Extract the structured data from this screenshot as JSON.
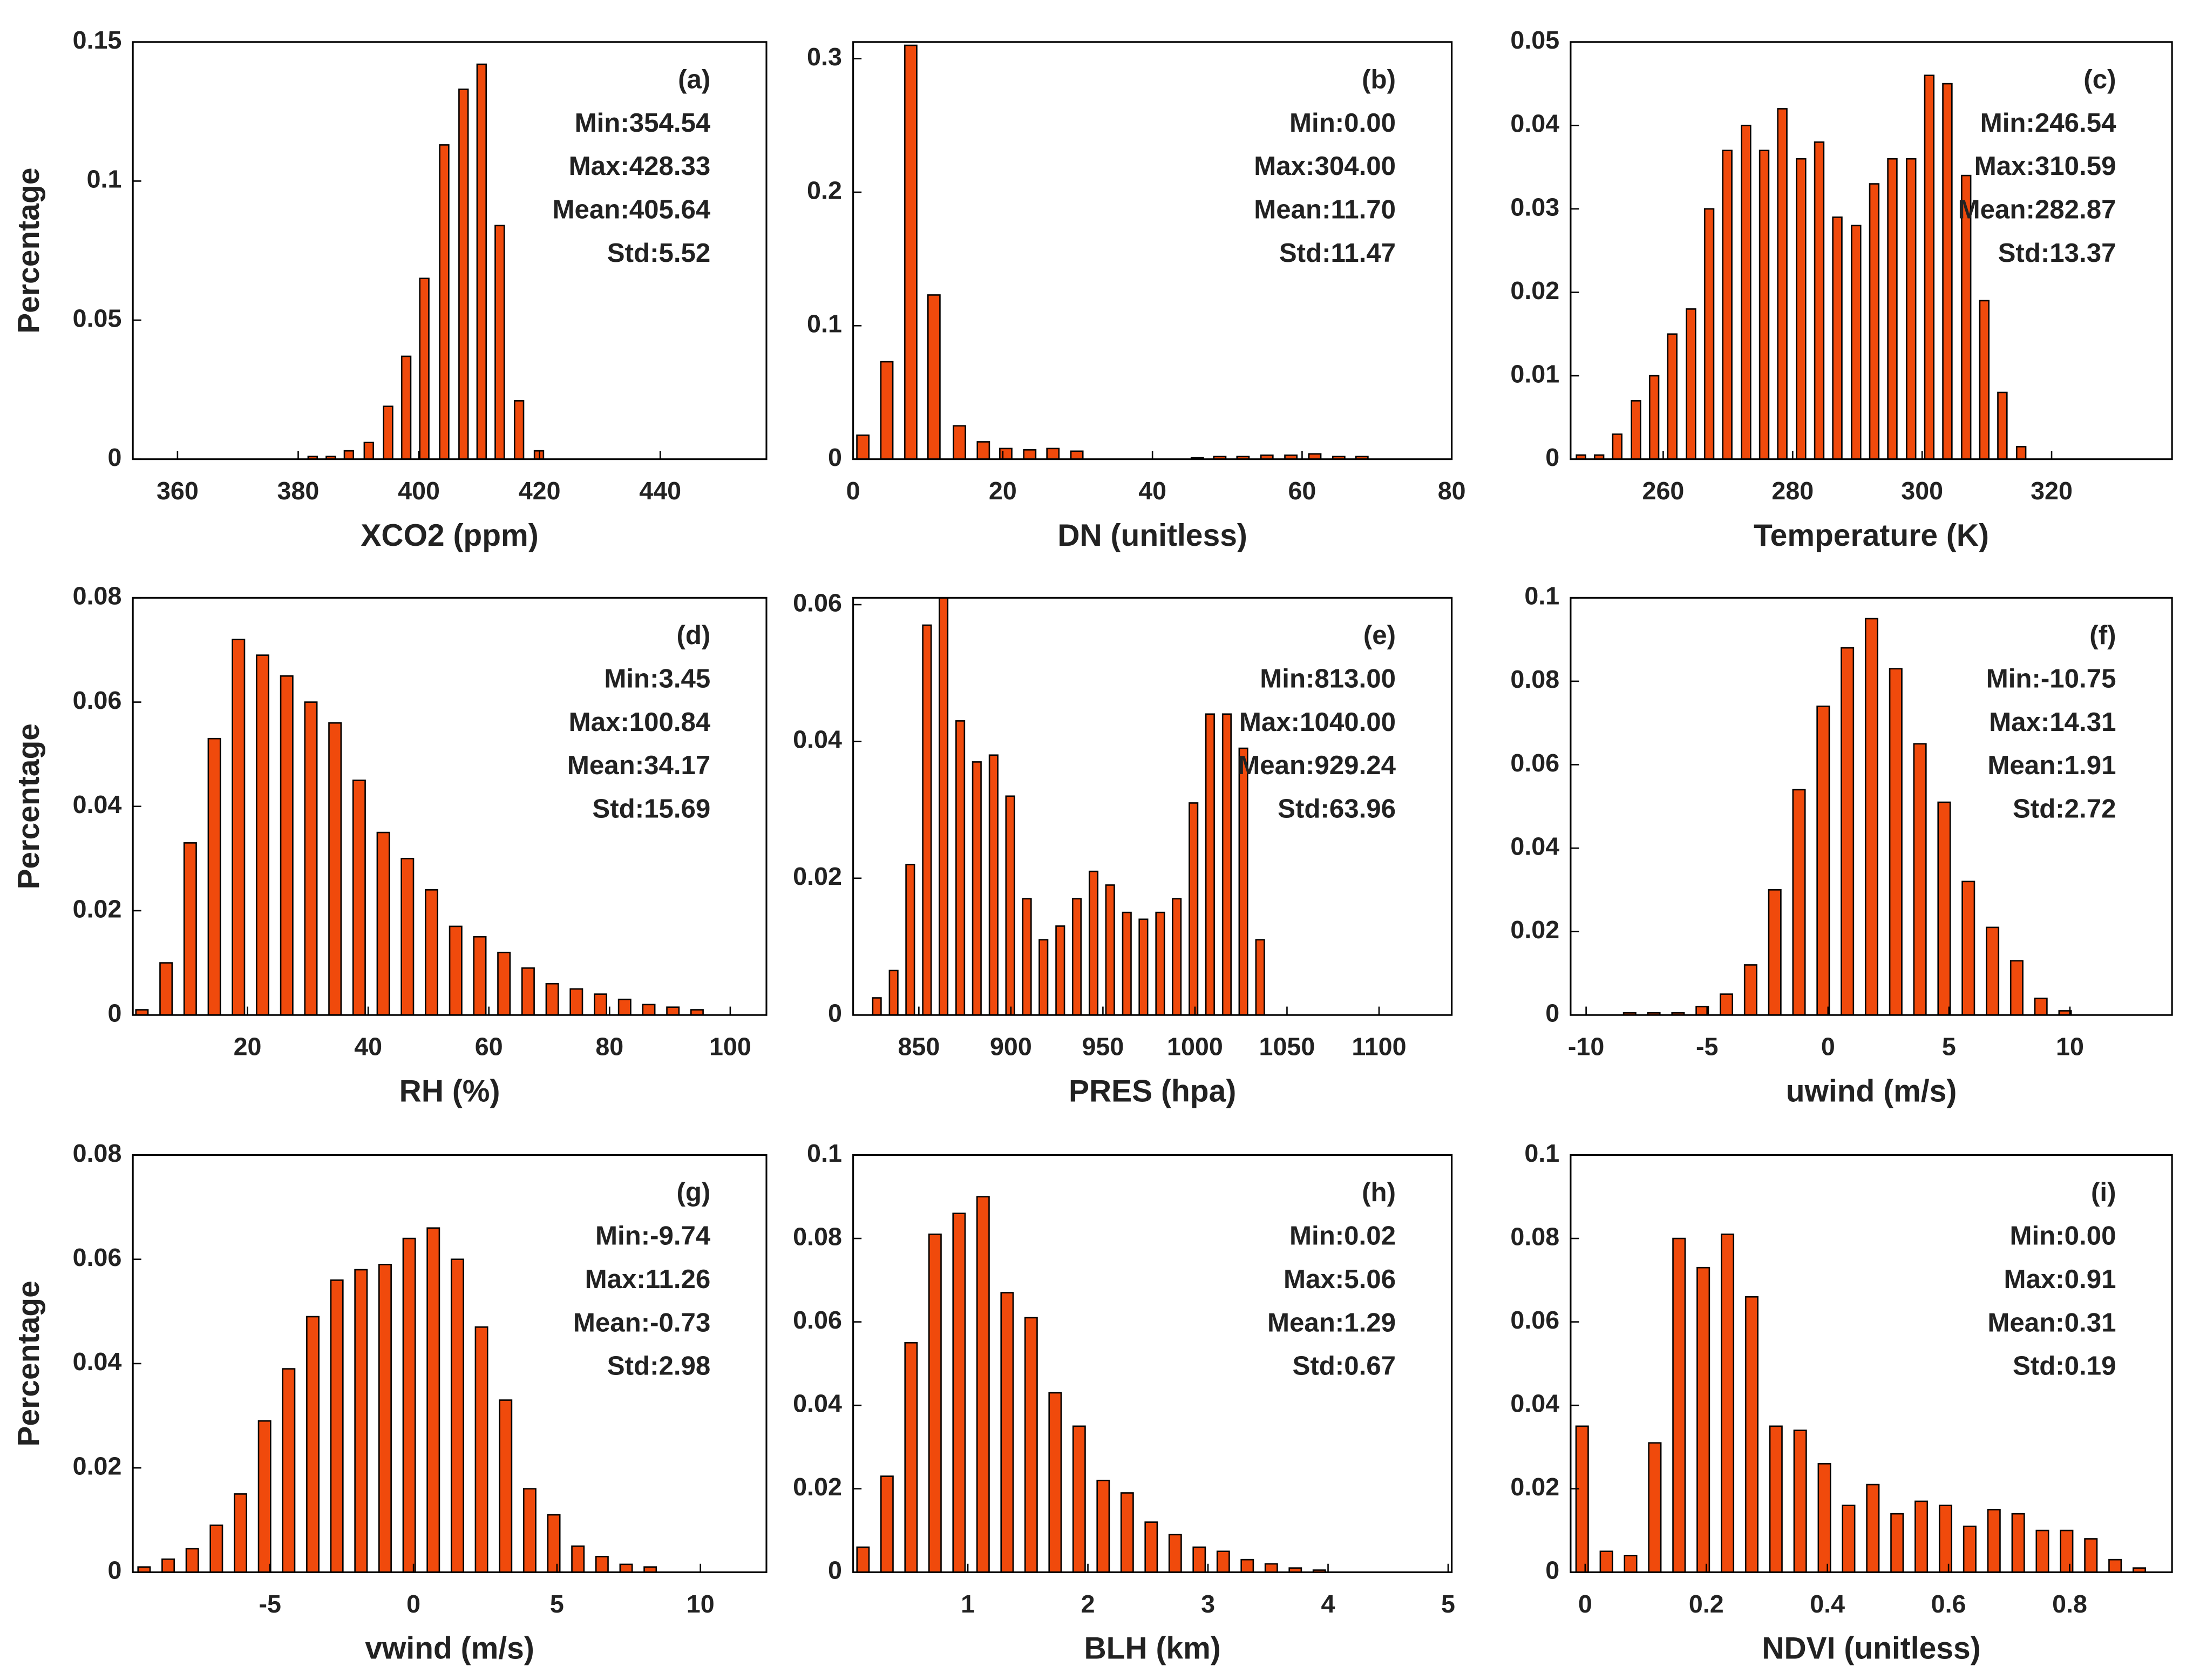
{
  "chart_data": [
    {
      "type": "bar",
      "xlabel": "XCO2 (ppm)",
      "ylabel": "Percentage",
      "color": "#f04a0c",
      "annotations": [
        "(a)",
        "Min:354.54",
        "Max:428.33",
        "Mean:405.64",
        "Std:5.52"
      ],
      "xlim": [
        352.6,
        457.6
      ],
      "xticks": [
        360,
        380,
        400,
        420,
        440
      ],
      "ylim": [
        0,
        0.15
      ],
      "yticks": [
        0,
        0.05,
        0.1,
        0.15
      ],
      "x": [
        382.4,
        385.4,
        388.4,
        391.7,
        394.9,
        397.9,
        400.9,
        404.2,
        407.4,
        410.4,
        413.4,
        416.6,
        419.9
      ],
      "values": [
        0.001,
        0.001,
        0.003,
        0.006,
        0.019,
        0.037,
        0.065,
        0.113,
        0.133,
        0.142,
        0.084,
        0.021,
        0.003
      ]
    },
    {
      "type": "bar",
      "xlabel": "DN (unitless)",
      "color": "#f04a0c",
      "annotations": [
        "(b)",
        "Min:0.00",
        "Max:304.00",
        "Mean:11.70",
        "Std:11.47"
      ],
      "xlim": [
        0,
        80
      ],
      "xticks": [
        0,
        20,
        40,
        60,
        80
      ],
      "ylim": [
        0,
        0.3125
      ],
      "yticks": [
        0,
        0.1,
        0.2,
        0.3
      ],
      "x": [
        1.3,
        4.5,
        7.7,
        10.8,
        14.2,
        17.4,
        20.4,
        23.6,
        26.7,
        29.9,
        46,
        49,
        52.1,
        55.3,
        58.5,
        61.7,
        64.9,
        68
      ],
      "values": [
        0.018,
        0.073,
        0.31,
        0.123,
        0.025,
        0.013,
        0.008,
        0.007,
        0.008,
        0.006,
        0.001,
        0.002,
        0.002,
        0.003,
        0.003,
        0.004,
        0.002,
        0.002
      ]
    },
    {
      "type": "bar",
      "xlabel": "Temperature (K)",
      "color": "#f04a0c",
      "annotations": [
        "(c)",
        "Min:246.54",
        "Max:310.59",
        "Mean:282.87",
        "Std:13.37"
      ],
      "xlim": [
        245.7,
        338.6
      ],
      "xticks": [
        260,
        280,
        300,
        320
      ],
      "ylim": [
        0,
        0.05
      ],
      "yticks": [
        0,
        0.01,
        0.02,
        0.03,
        0.04,
        0.05
      ],
      "x": [
        247.3,
        250.1,
        252.9,
        255.8,
        258.6,
        261.4,
        264.3,
        267.1,
        269.9,
        272.8,
        275.6,
        278.4,
        281.3,
        284.1,
        286.9,
        289.8,
        292.6,
        295.4,
        298.3,
        301.1,
        303.9,
        306.8,
        309.6,
        312.4,
        315.3
      ],
      "values": [
        0.0005,
        0.0005,
        0.003,
        0.007,
        0.01,
        0.015,
        0.018,
        0.03,
        0.037,
        0.04,
        0.037,
        0.042,
        0.036,
        0.038,
        0.029,
        0.028,
        0.033,
        0.036,
        0.036,
        0.046,
        0.045,
        0.034,
        0.019,
        0.008,
        0.0015
      ]
    },
    {
      "type": "bar",
      "xlabel": "RH (%)",
      "ylabel": "Percentage",
      "color": "#f04a0c",
      "annotations": [
        "(d)",
        "Min:3.45",
        "Max:100.84",
        "Mean:34.17",
        "Std:15.69"
      ],
      "xlim": [
        1,
        106
      ],
      "xticks": [
        20,
        40,
        60,
        80,
        100
      ],
      "ylim": [
        0,
        0.08
      ],
      "yticks": [
        0,
        0.02,
        0.04,
        0.06,
        0.08
      ],
      "x": [
        2.5,
        6.5,
        10.5,
        14.5,
        18.5,
        22.5,
        26.5,
        30.5,
        34.5,
        38.5,
        42.5,
        46.5,
        50.5,
        54.5,
        58.5,
        62.5,
        66.5,
        70.5,
        74.5,
        78.5,
        82.5,
        86.5,
        90.5,
        94.5
      ],
      "values": [
        0.001,
        0.01,
        0.033,
        0.053,
        0.072,
        0.069,
        0.065,
        0.06,
        0.056,
        0.045,
        0.035,
        0.03,
        0.024,
        0.017,
        0.015,
        0.012,
        0.009,
        0.006,
        0.005,
        0.004,
        0.003,
        0.002,
        0.0015,
        0.001
      ]
    },
    {
      "type": "bar",
      "xlabel": "PRES (hpa)",
      "color": "#f04a0c",
      "annotations": [
        "(e)",
        "Min:813.00",
        "Max:1040.00",
        "Mean:929.24",
        "Std:63.96"
      ],
      "xlim": [
        814.3,
        1139.5
      ],
      "xticks": [
        850,
        900,
        950,
        1000,
        1050,
        1100
      ],
      "ylim": [
        0,
        0.061
      ],
      "yticks": [
        0,
        0.02,
        0.04,
        0.06
      ],
      "x": [
        827.2,
        836.3,
        845.3,
        854.4,
        863.4,
        872.5,
        881.5,
        890.6,
        899.6,
        908.7,
        917.7,
        926.8,
        935.8,
        944.9,
        953.9,
        963.0,
        972.0,
        981.1,
        990.1,
        999.2,
        1008.2,
        1017.3,
        1026.3,
        1035.4
      ],
      "values": [
        0.0025,
        0.0065,
        0.022,
        0.057,
        0.061,
        0.043,
        0.037,
        0.038,
        0.032,
        0.017,
        0.011,
        0.013,
        0.017,
        0.021,
        0.019,
        0.015,
        0.014,
        0.015,
        0.017,
        0.031,
        0.044,
        0.044,
        0.039,
        0.011
      ]
    },
    {
      "type": "bar",
      "xlabel": "uwind (m/s)",
      "color": "#f04a0c",
      "annotations": [
        "(f)",
        "Min:-10.75",
        "Max:14.31",
        "Mean:1.91",
        "Std:2.72"
      ],
      "xlim": [
        -10.64,
        14.22
      ],
      "xticks": [
        -10,
        -5,
        0,
        5,
        10
      ],
      "ylim": [
        0,
        0.1
      ],
      "yticks": [
        0,
        0.02,
        0.04,
        0.06,
        0.08,
        0.1
      ],
      "x": [
        -8.2,
        -7.2,
        -6.2,
        -5.2,
        -4.2,
        -3.2,
        -2.2,
        -1.2,
        -0.2,
        0.8,
        1.8,
        2.8,
        3.8,
        4.8,
        5.8,
        6.8,
        7.8,
        8.8,
        9.8
      ],
      "values": [
        0.0005,
        0.0005,
        0.0005,
        0.002,
        0.005,
        0.012,
        0.03,
        0.054,
        0.074,
        0.088,
        0.095,
        0.083,
        0.065,
        0.051,
        0.032,
        0.021,
        0.013,
        0.004,
        0.001
      ]
    },
    {
      "type": "bar",
      "xlabel": "vwind (m/s)",
      "ylabel": "Percentage",
      "color": "#f04a0c",
      "annotations": [
        "(g)",
        "Min:-9.74",
        "Max:11.26",
        "Mean:-0.73",
        "Std:2.98"
      ],
      "xlim": [
        -9.78,
        12.3
      ],
      "xticks": [
        -5,
        0,
        5,
        10
      ],
      "ylim": [
        0,
        0.08
      ],
      "yticks": [
        0,
        0.02,
        0.04,
        0.06,
        0.08
      ],
      "x": [
        -9.39,
        -8.55,
        -7.71,
        -6.87,
        -6.03,
        -5.19,
        -4.35,
        -3.51,
        -2.67,
        -1.83,
        -0.99,
        -0.15,
        0.69,
        1.53,
        2.37,
        3.21,
        4.05,
        4.89,
        5.73,
        6.57,
        7.41,
        8.25
      ],
      "values": [
        0.001,
        0.0025,
        0.0045,
        0.009,
        0.015,
        0.029,
        0.039,
        0.049,
        0.056,
        0.058,
        0.059,
        0.064,
        0.066,
        0.06,
        0.047,
        0.033,
        0.016,
        0.011,
        0.005,
        0.003,
        0.0015,
        0.001
      ]
    },
    {
      "type": "bar",
      "xlabel": "BLH (km)",
      "color": "#f04a0c",
      "annotations": [
        "(h)",
        "Min:0.02",
        "Max:5.06",
        "Mean:1.29",
        "Std:0.67"
      ],
      "xlim": [
        0.045,
        5.03
      ],
      "xticks": [
        1,
        2,
        3,
        4,
        5
      ],
      "ylim": [
        0,
        0.1
      ],
      "yticks": [
        0,
        0.02,
        0.04,
        0.06,
        0.08,
        0.1
      ],
      "x": [
        0.127,
        0.327,
        0.527,
        0.727,
        0.927,
        1.127,
        1.327,
        1.527,
        1.727,
        1.927,
        2.127,
        2.327,
        2.527,
        2.727,
        2.927,
        3.127,
        3.327,
        3.527,
        3.727,
        3.927
      ],
      "values": [
        0.006,
        0.023,
        0.055,
        0.081,
        0.086,
        0.09,
        0.067,
        0.061,
        0.043,
        0.035,
        0.022,
        0.019,
        0.012,
        0.009,
        0.006,
        0.005,
        0.003,
        0.002,
        0.001,
        0.0005
      ]
    },
    {
      "type": "bar",
      "xlabel": "NDVI (unitless)",
      "color": "#f04a0c",
      "annotations": [
        "(i)",
        "Min:0.00",
        "Max:0.91",
        "Mean:0.31",
        "Std:0.19"
      ],
      "xlim": [
        -0.024,
        0.969
      ],
      "xticks": [
        0,
        0.2,
        0.4,
        0.6,
        0.8
      ],
      "ylim": [
        0,
        0.1
      ],
      "yticks": [
        0,
        0.02,
        0.04,
        0.06,
        0.08,
        0.1
      ],
      "x": [
        -0.005,
        0.035,
        0.075,
        0.115,
        0.155,
        0.195,
        0.235,
        0.275,
        0.315,
        0.355,
        0.395,
        0.435,
        0.475,
        0.515,
        0.555,
        0.595,
        0.635,
        0.675,
        0.715,
        0.755,
        0.795,
        0.835,
        0.875,
        0.915
      ],
      "values": [
        0.035,
        0.005,
        0.004,
        0.031,
        0.08,
        0.073,
        0.081,
        0.066,
        0.035,
        0.034,
        0.026,
        0.016,
        0.021,
        0.014,
        0.017,
        0.016,
        0.011,
        0.015,
        0.014,
        0.01,
        0.01,
        0.008,
        0.003,
        0.001
      ]
    }
  ]
}
